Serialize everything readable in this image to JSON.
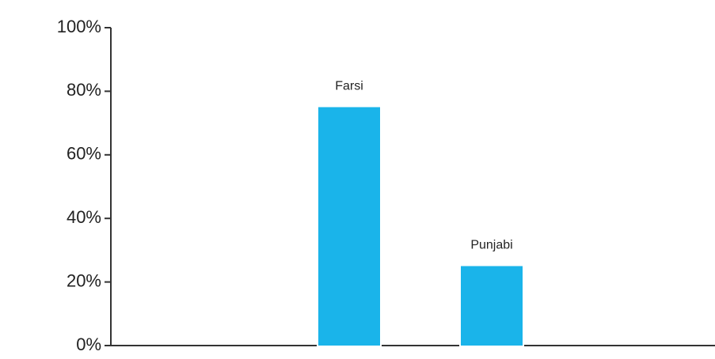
{
  "chart_data": {
    "type": "bar",
    "categories": [
      "Farsi",
      "Punjabi"
    ],
    "values": [
      75,
      25
    ],
    "color": "#1ab4ea",
    "ylim": [
      0,
      100
    ],
    "yticks": [
      {
        "value": 0,
        "label": "0%"
      },
      {
        "value": 20,
        "label": "20%"
      },
      {
        "value": 40,
        "label": "40%"
      },
      {
        "value": 60,
        "label": "60%"
      },
      {
        "value": 80,
        "label": "80%"
      },
      {
        "value": 100,
        "label": "100%"
      }
    ]
  }
}
